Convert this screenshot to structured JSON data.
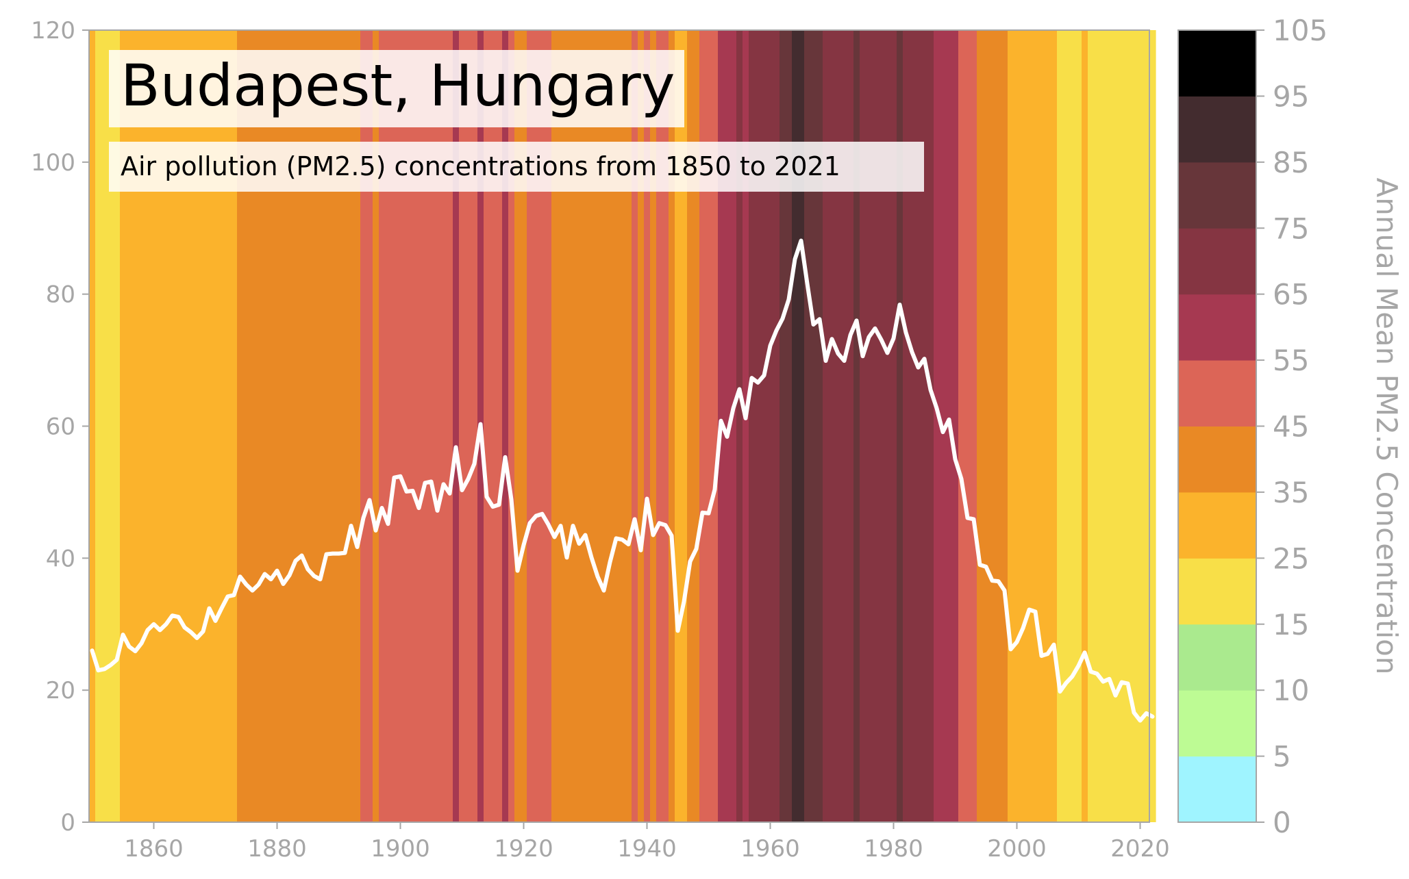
{
  "chart_data": {
    "type": "line",
    "title": "Budapest, Hungary",
    "subtitle": "Air pollution (PM2.5) concentrations from 1850 to 2021",
    "colorbar_label": "Annual Mean PM2.5 Concentration",
    "xlim": [
      1850,
      2021
    ],
    "ylim": [
      0,
      120
    ],
    "x_ticks": [
      1860,
      1880,
      1900,
      1920,
      1940,
      1960,
      1980,
      2000,
      2020
    ],
    "y_ticks": [
      0,
      20,
      40,
      60,
      80,
      100,
      120
    ],
    "grid": false,
    "line_color": "#ffffff",
    "colorbar": {
      "ticks": [
        0,
        5,
        10,
        15,
        25,
        35,
        45,
        55,
        65,
        75,
        85,
        95,
        105
      ],
      "colors": [
        "#9ff4ff",
        "#bdfb94",
        "#aaea8e",
        "#f8df48",
        "#fbb32c",
        "#e98925",
        "#dc6557",
        "#a63951",
        "#853542",
        "#67363a",
        "#432c2f",
        "#000000"
      ]
    },
    "series": [
      {
        "x_start": 1850,
        "values": [
          26.0,
          23.0,
          23.2,
          23.8,
          24.6,
          28.4,
          26.6,
          25.9,
          27.1,
          29.1,
          30.0,
          29.1,
          30.0,
          31.3,
          31.1,
          29.5,
          28.8,
          27.9,
          28.9,
          32.4,
          30.5,
          32.4,
          34.2,
          34.4,
          37.2,
          36.0,
          35.1,
          36.0,
          37.6,
          36.8,
          38.1,
          36.1,
          37.4,
          39.6,
          40.4,
          38.3,
          37.3,
          36.8,
          40.6,
          40.7,
          40.7,
          40.8,
          44.9,
          41.7,
          46.1,
          48.8,
          44.2,
          47.6,
          45.2,
          52.2,
          52.4,
          50.1,
          50.2,
          47.6,
          51.4,
          51.6,
          47.2,
          51.2,
          49.8,
          56.8,
          50.3,
          52.0,
          54.3,
          60.3,
          49.3,
          47.8,
          48.1,
          55.3,
          48.9,
          38.1,
          42.0,
          45.3,
          46.4,
          46.7,
          45.1,
          43.2,
          44.9,
          40.1,
          44.9,
          42.2,
          43.5,
          40.1,
          37.2,
          35.1,
          39.4,
          43.0,
          42.8,
          42.1,
          45.9,
          41.2,
          49.0,
          43.5,
          45.3,
          45.0,
          43.4,
          29.0,
          33.4,
          39.5,
          41.4,
          46.9,
          46.8,
          50.4,
          60.8,
          58.4,
          62.7,
          65.6,
          61.2,
          67.3,
          66.6,
          67.7,
          72.2,
          74.5,
          76.3,
          79.2,
          85.3,
          88.1,
          81.6,
          75.4,
          76.2,
          69.9,
          73.2,
          71.0,
          69.9,
          73.8,
          76.0,
          70.6,
          73.5,
          74.8,
          73.1,
          71.1,
          73.3,
          78.4,
          74.2,
          71.2,
          68.9,
          70.2,
          65.5,
          62.7,
          59.1,
          61.0,
          55.0,
          52.0,
          46.1,
          45.9,
          39.0,
          38.7,
          36.6,
          36.5,
          35.1,
          26.2,
          27.3,
          29.4,
          32.2,
          31.9,
          25.2,
          25.5,
          26.9,
          19.8,
          21.1,
          22.1,
          23.7,
          25.7,
          22.8,
          22.5,
          21.3,
          21.7,
          19.2,
          21.2,
          21.0,
          16.6,
          15.4,
          16.5,
          16.0
        ]
      }
    ]
  }
}
